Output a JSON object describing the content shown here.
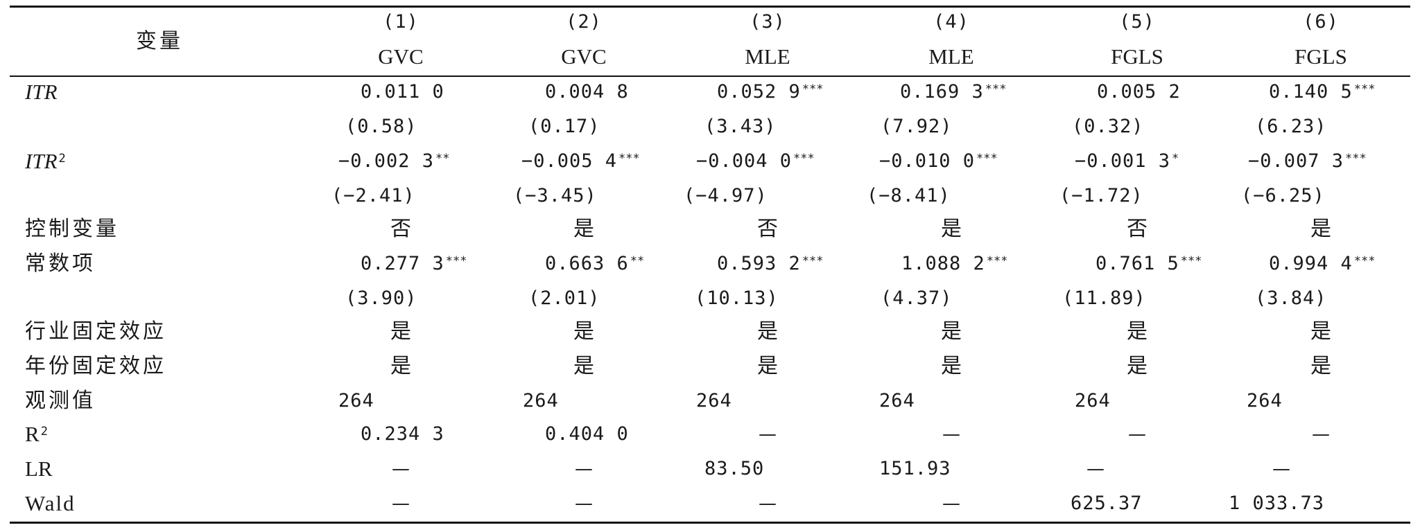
{
  "header": {
    "variable_label": "变量",
    "columns": [
      {
        "number": "(1)",
        "method": "GVC"
      },
      {
        "number": "(2)",
        "method": "GVC"
      },
      {
        "number": "(3)",
        "method": "MLE"
      },
      {
        "number": "(4)",
        "method": "MLE"
      },
      {
        "number": "(5)",
        "method": "FGLS"
      },
      {
        "number": "(6)",
        "method": "FGLS"
      }
    ]
  },
  "rows": {
    "itr": {
      "label": "ITR",
      "coef": [
        "0.011 0",
        "0.004 8",
        "0.052 9",
        "0.169 3",
        "0.005 2",
        "0.140 5"
      ],
      "stars": [
        "",
        "",
        "***",
        "***",
        "",
        "***"
      ],
      "t": [
        "(0.58)",
        "(0.17)",
        "(3.43)",
        "(7.92)",
        "(0.32)",
        "(6.23)"
      ]
    },
    "itr2": {
      "label": "ITR",
      "label_sup": "2",
      "coef": [
        "−0.002 3",
        "−0.005 4",
        "−0.004 0",
        "−0.010 0",
        "−0.001 3",
        "−0.007 3"
      ],
      "stars": [
        "**",
        "***",
        "***",
        "***",
        "*",
        "***"
      ],
      "t": [
        "(−2.41)",
        "(−3.45)",
        "(−4.97)",
        "(−8.41)",
        "(−1.72)",
        "(−6.25)"
      ]
    },
    "controls": {
      "label": "控制变量",
      "values": [
        "否",
        "是",
        "否",
        "是",
        "否",
        "是"
      ]
    },
    "constant": {
      "label": "常数项",
      "coef": [
        "0.277 3",
        "0.663 6",
        "0.593 2",
        "1.088 2",
        "0.761 5",
        "0.994 4"
      ],
      "stars": [
        "***",
        "**",
        "***",
        "***",
        "***",
        "***"
      ],
      "t": [
        "(3.90)",
        "(2.01)",
        "(10.13)",
        "(4.37)",
        "(11.89)",
        "(3.84)"
      ]
    },
    "industry_fe": {
      "label": "行业固定效应",
      "values": [
        "是",
        "是",
        "是",
        "是",
        "是",
        "是"
      ]
    },
    "year_fe": {
      "label": "年份固定效应",
      "values": [
        "是",
        "是",
        "是",
        "是",
        "是",
        "是"
      ]
    },
    "obs": {
      "label": "观测值",
      "values": [
        "264",
        "264",
        "264",
        "264",
        "264",
        "264"
      ]
    },
    "r2": {
      "label": "R",
      "label_sup": "2",
      "values": [
        "0.234 3",
        "0.404 0",
        "—",
        "—",
        "—",
        "—"
      ]
    },
    "lr": {
      "label": "LR",
      "values": [
        "—",
        "—",
        "83.50",
        "151.93",
        "—",
        "—"
      ]
    },
    "wald": {
      "label": "Wald",
      "values": [
        "—",
        "—",
        "—",
        "—",
        "625.37",
        "1 033.73"
      ]
    }
  }
}
